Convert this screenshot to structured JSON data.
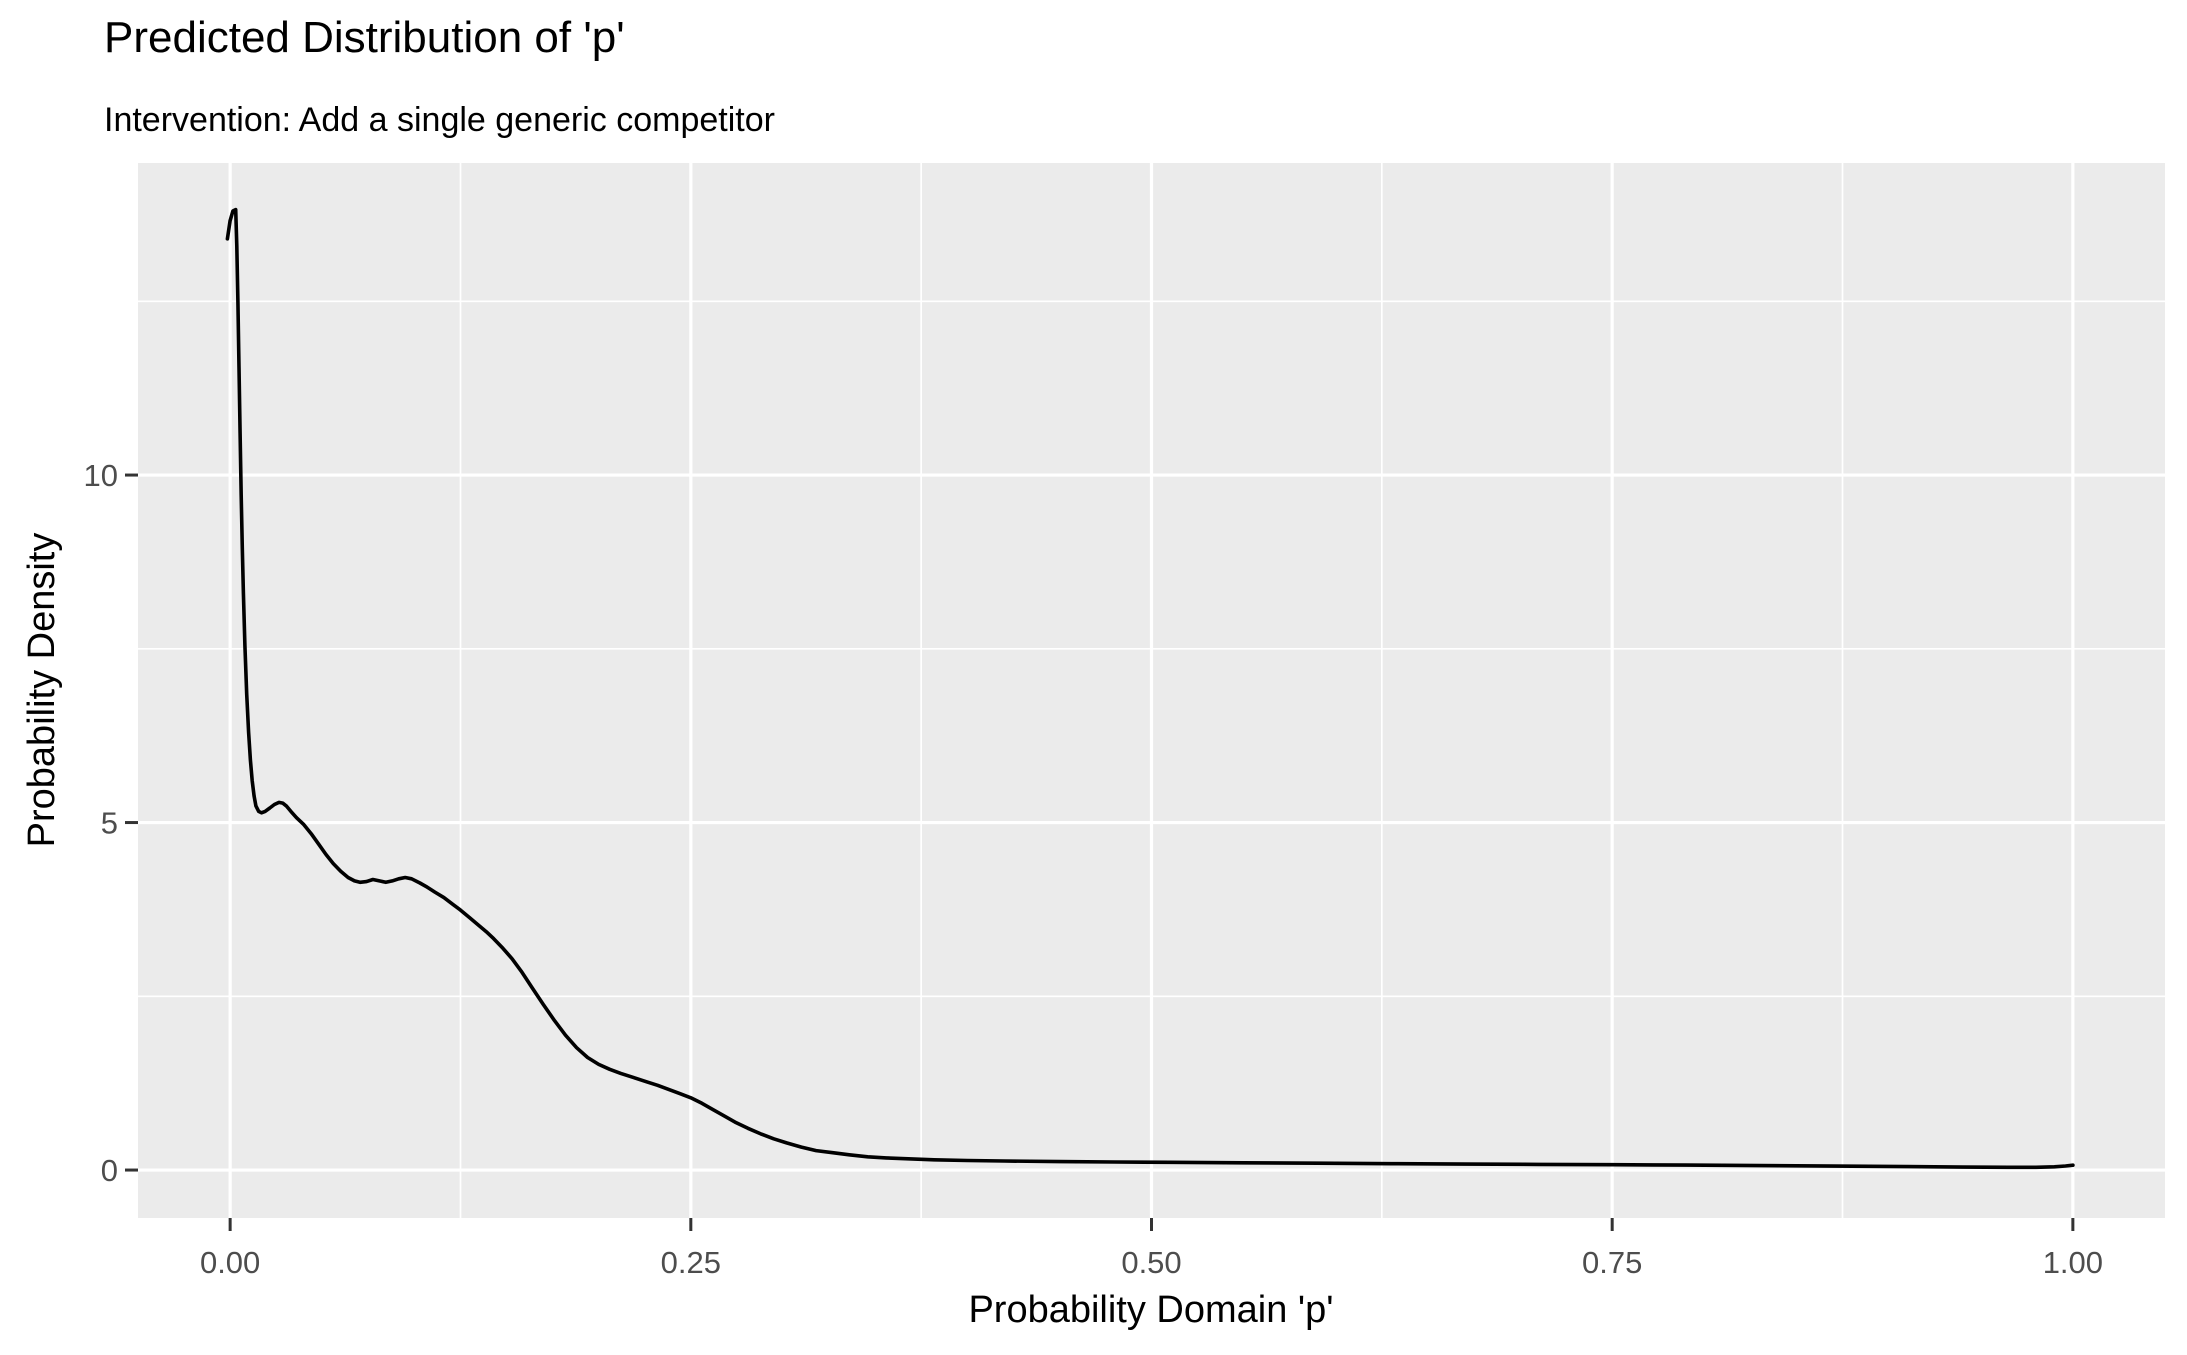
{
  "header": {
    "title": "Predicted Distribution of 'p'",
    "subtitle": "Intervention: Add a single generic competitor"
  },
  "chart_data": {
    "type": "line",
    "title": "Predicted Distribution of 'p'",
    "subtitle": "Intervention: Add a single generic competitor",
    "xlabel": "Probability Domain 'p'",
    "ylabel": "Probability Density",
    "xlim": [
      -0.05,
      1.05
    ],
    "ylim": [
      -0.69,
      14.49
    ],
    "grid": true,
    "legend_position": "none",
    "panel_bg_color": "#EBEBEB",
    "grid_color": "#FFFFFF",
    "axis_text_color": "#4D4D4D",
    "tick_mark_color": "#333333",
    "title_color": "#000000",
    "x_ticks": [
      {
        "value": 0.0,
        "label": "0.00"
      },
      {
        "value": 0.25,
        "label": "0.25"
      },
      {
        "value": 0.5,
        "label": "0.50"
      },
      {
        "value": 0.75,
        "label": "0.75"
      },
      {
        "value": 1.0,
        "label": "1.00"
      }
    ],
    "y_ticks": [
      {
        "value": 0,
        "label": "0"
      },
      {
        "value": 5,
        "label": "5"
      },
      {
        "value": 10,
        "label": "10"
      }
    ],
    "x_minor": [
      0.125,
      0.375,
      0.625,
      0.875
    ],
    "y_minor": [
      2.5,
      7.5,
      12.5
    ],
    "series": [
      {
        "name": "predicted-density-of-p",
        "color": "#000000",
        "points": [
          [
            -0.0015,
            13.4
          ],
          [
            0.0,
            13.66
          ],
          [
            0.0015,
            13.8
          ],
          [
            0.003,
            13.82
          ],
          [
            0.0036,
            13.3
          ],
          [
            0.0042,
            12.5
          ],
          [
            0.0048,
            11.55
          ],
          [
            0.0054,
            10.6
          ],
          [
            0.006,
            9.7
          ],
          [
            0.0066,
            8.95
          ],
          [
            0.0072,
            8.3
          ],
          [
            0.008,
            7.55
          ],
          [
            0.009,
            6.85
          ],
          [
            0.01,
            6.3
          ],
          [
            0.011,
            5.9
          ],
          [
            0.012,
            5.6
          ],
          [
            0.013,
            5.38
          ],
          [
            0.014,
            5.24
          ],
          [
            0.0155,
            5.16
          ],
          [
            0.017,
            5.14
          ],
          [
            0.019,
            5.16
          ],
          [
            0.0215,
            5.21
          ],
          [
            0.024,
            5.26
          ],
          [
            0.0265,
            5.29
          ],
          [
            0.0285,
            5.28
          ],
          [
            0.0305,
            5.24
          ],
          [
            0.033,
            5.16
          ],
          [
            0.036,
            5.07
          ],
          [
            0.04,
            4.97
          ],
          [
            0.044,
            4.84
          ],
          [
            0.048,
            4.69
          ],
          [
            0.052,
            4.54
          ],
          [
            0.056,
            4.41
          ],
          [
            0.06,
            4.3
          ],
          [
            0.064,
            4.21
          ],
          [
            0.0675,
            4.16
          ],
          [
            0.0705,
            4.14
          ],
          [
            0.074,
            4.15
          ],
          [
            0.0775,
            4.18
          ],
          [
            0.081,
            4.16
          ],
          [
            0.0845,
            4.14
          ],
          [
            0.088,
            4.16
          ],
          [
            0.0915,
            4.19
          ],
          [
            0.095,
            4.21
          ],
          [
            0.0985,
            4.19
          ],
          [
            0.103,
            4.13
          ],
          [
            0.107,
            4.07
          ],
          [
            0.111,
            4.0
          ],
          [
            0.116,
            3.92
          ],
          [
            0.121,
            3.82
          ],
          [
            0.125,
            3.74
          ],
          [
            0.13,
            3.63
          ],
          [
            0.134,
            3.54
          ],
          [
            0.139,
            3.43
          ],
          [
            0.143,
            3.33
          ],
          [
            0.148,
            3.19
          ],
          [
            0.153,
            3.04
          ],
          [
            0.158,
            2.86
          ],
          [
            0.164,
            2.62
          ],
          [
            0.17,
            2.38
          ],
          [
            0.176,
            2.15
          ],
          [
            0.182,
            1.94
          ],
          [
            0.188,
            1.76
          ],
          [
            0.194,
            1.62
          ],
          [
            0.2,
            1.52
          ],
          [
            0.206,
            1.45
          ],
          [
            0.212,
            1.39
          ],
          [
            0.219,
            1.33
          ],
          [
            0.226,
            1.27
          ],
          [
            0.232,
            1.22
          ],
          [
            0.238,
            1.16
          ],
          [
            0.244,
            1.1
          ],
          [
            0.25,
            1.04
          ],
          [
            0.256,
            0.96
          ],
          [
            0.262,
            0.87
          ],
          [
            0.268,
            0.78
          ],
          [
            0.274,
            0.69
          ],
          [
            0.281,
            0.6
          ],
          [
            0.288,
            0.52
          ],
          [
            0.295,
            0.45
          ],
          [
            0.302,
            0.39
          ],
          [
            0.31,
            0.33
          ],
          [
            0.318,
            0.28
          ],
          [
            0.327,
            0.25
          ],
          [
            0.336,
            0.22
          ],
          [
            0.346,
            0.19
          ],
          [
            0.356,
            0.175
          ],
          [
            0.368,
            0.162
          ],
          [
            0.382,
            0.148
          ],
          [
            0.4,
            0.138
          ],
          [
            0.42,
            0.13
          ],
          [
            0.45,
            0.122
          ],
          [
            0.48,
            0.116
          ],
          [
            0.51,
            0.111
          ],
          [
            0.55,
            0.104
          ],
          [
            0.59,
            0.098
          ],
          [
            0.63,
            0.091
          ],
          [
            0.67,
            0.085
          ],
          [
            0.71,
            0.081
          ],
          [
            0.75,
            0.077
          ],
          [
            0.79,
            0.071
          ],
          [
            0.83,
            0.064
          ],
          [
            0.87,
            0.057
          ],
          [
            0.91,
            0.049
          ],
          [
            0.94,
            0.043
          ],
          [
            0.965,
            0.039
          ],
          [
            0.98,
            0.04
          ],
          [
            0.99,
            0.047
          ],
          [
            0.996,
            0.058
          ],
          [
            1.0,
            0.07
          ]
        ]
      }
    ]
  }
}
